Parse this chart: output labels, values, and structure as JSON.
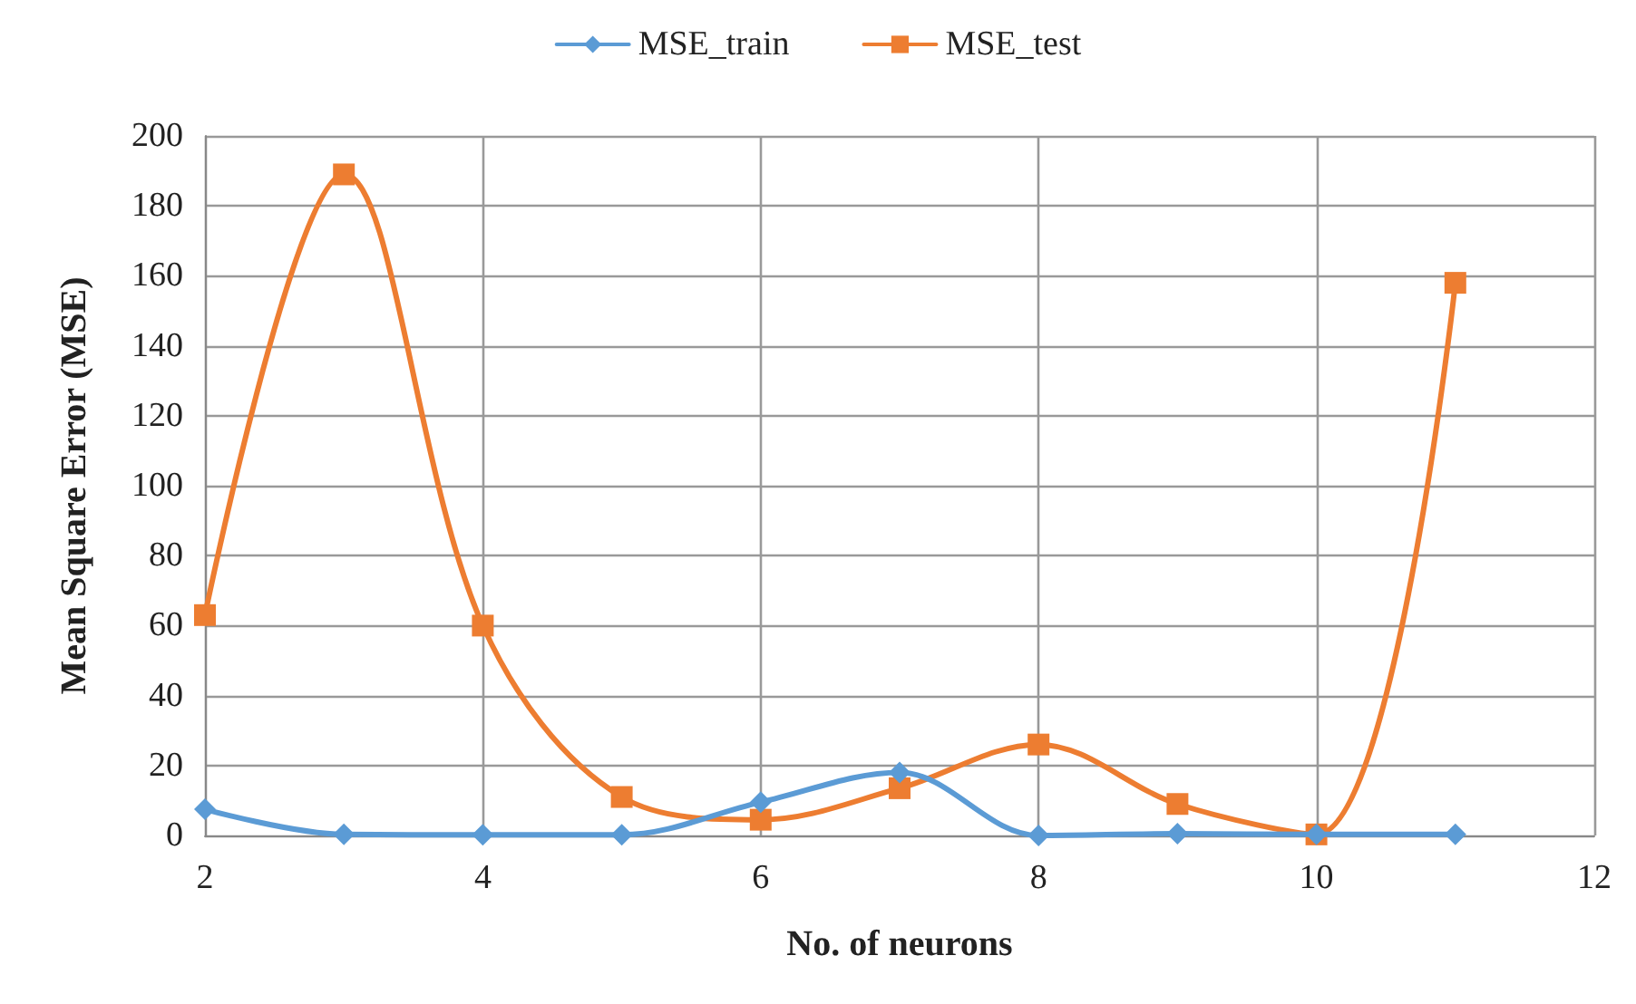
{
  "chart_data": {
    "type": "line",
    "xlabel": "No. of neurons",
    "ylabel": "Mean Square Error (MSE)",
    "xlim": [
      2,
      12
    ],
    "xticks": [
      2,
      4,
      6,
      8,
      10,
      12
    ],
    "ylim": [
      0,
      200
    ],
    "yticks": [
      0,
      20,
      40,
      60,
      80,
      100,
      120,
      140,
      160,
      180,
      200
    ],
    "grid": true,
    "legend": "top",
    "line_style": "solid",
    "series": [
      {
        "name": "MSE_train",
        "color": "#5b9bd5",
        "marker": "diamond",
        "x": [
          2,
          3,
          4,
          5,
          6,
          7,
          8,
          9,
          10,
          11
        ],
        "values": [
          7.5,
          0.3,
          0.2,
          0.2,
          9.5,
          18,
          0,
          0.5,
          0.3,
          0.3
        ]
      },
      {
        "name": "MSE_test",
        "color": "#ed7d31",
        "marker": "square",
        "x": [
          2,
          3,
          4,
          5,
          6,
          7,
          8,
          9,
          10,
          11
        ],
        "values": [
          63,
          189,
          60,
          11,
          4.5,
          13.5,
          26,
          9,
          0.3,
          158
        ]
      }
    ]
  }
}
